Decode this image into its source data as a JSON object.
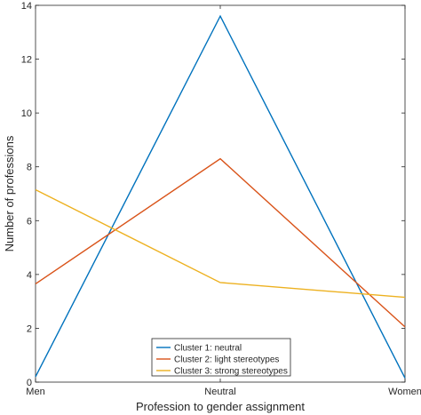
{
  "chart_data": {
    "type": "line",
    "title": "",
    "xlabel": "Profession to gender assignment",
    "ylabel": "Number of professions",
    "categories": [
      "Men",
      "Neutral",
      "Women"
    ],
    "ylim": [
      0,
      14
    ],
    "yticks": [
      0,
      2,
      4,
      6,
      8,
      10,
      12,
      14
    ],
    "grid": false,
    "legend_position": "bottom-center",
    "series": [
      {
        "name": "Cluster 1: neutral",
        "color": "#0072BD",
        "values": [
          0.2,
          13.6,
          0.15
        ]
      },
      {
        "name": "Cluster 2: light stereotypes",
        "color": "#D95319",
        "values": [
          3.65,
          8.3,
          2.05
        ]
      },
      {
        "name": "Cluster 3: strong stereotypes",
        "color": "#EDB120",
        "values": [
          7.15,
          3.7,
          3.15
        ]
      }
    ]
  }
}
